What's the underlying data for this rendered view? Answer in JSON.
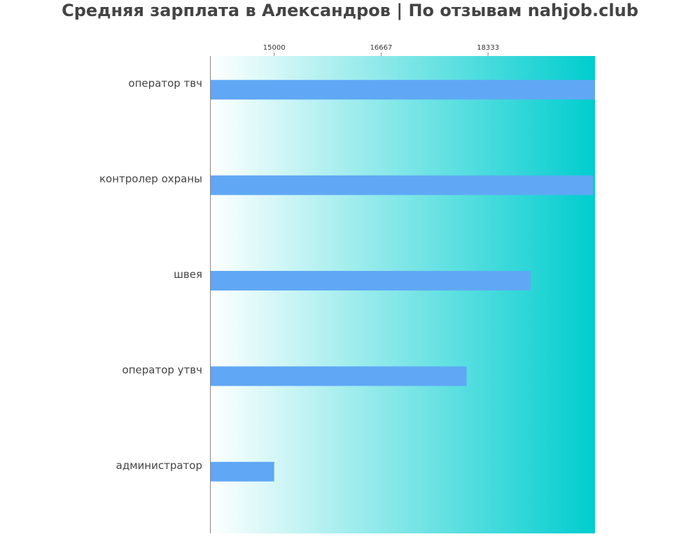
{
  "chart_data": {
    "type": "bar",
    "orientation": "horizontal",
    "title": "Средняя зарплата в Александров | По отзывам nahjob.club",
    "categories": [
      "оператор твч",
      "контролер охраны",
      "швея",
      "оператор утвч",
      "администратор"
    ],
    "values": [
      20000,
      19970,
      19000,
      18000,
      15000
    ],
    "xlim": [
      14000,
      20000
    ],
    "xticks": [
      15000,
      16667,
      18333
    ],
    "xtick_labels": [
      "15000",
      "16667",
      "18333"
    ],
    "xaxis_position": "top",
    "grid": false,
    "legend": "none",
    "bar_color": "#60a8f5",
    "background_gradient": [
      "#ffffff",
      "#00cdcf"
    ]
  }
}
